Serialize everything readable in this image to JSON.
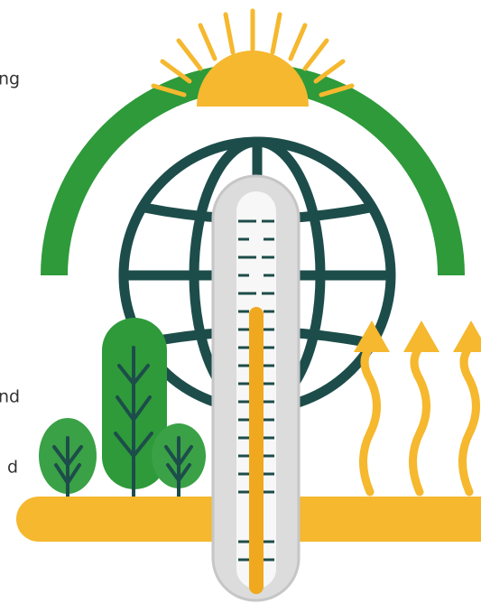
{
  "text_fragments": [
    "ng",
    "nd",
    "d"
  ]
}
